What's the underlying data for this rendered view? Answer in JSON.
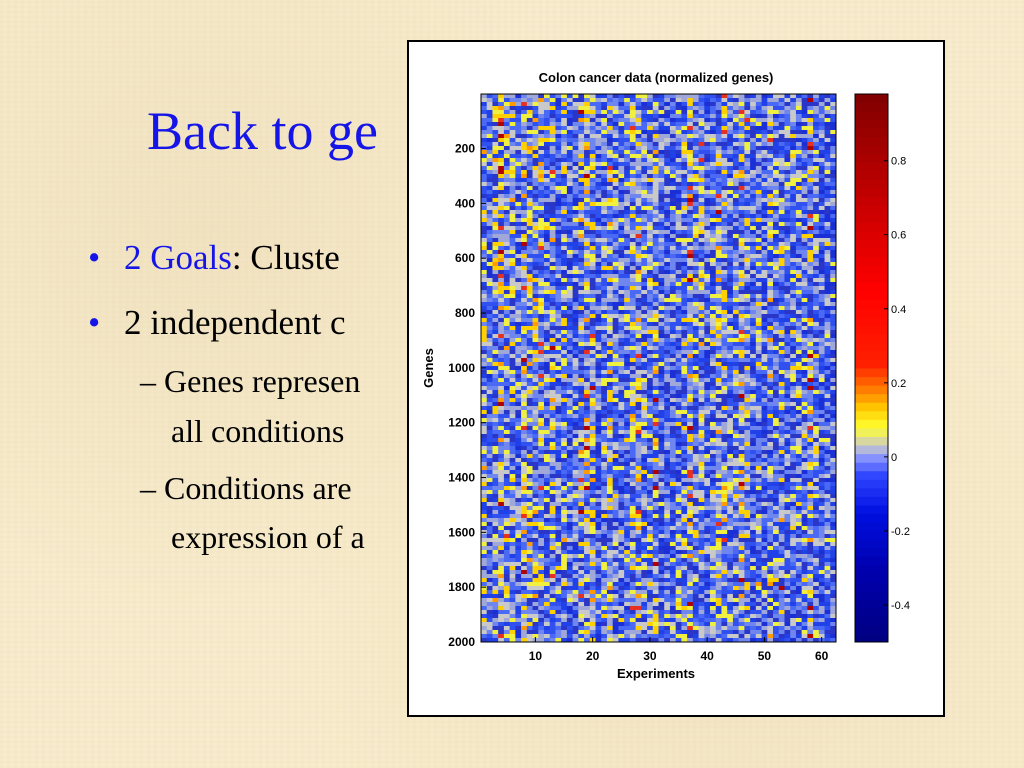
{
  "slide": {
    "title": "Back to ge",
    "bullets": [
      {
        "highlight": "2 Goals",
        "text": ": Cluste"
      },
      {
        "highlight": "",
        "text": "2 independent c"
      }
    ],
    "subbullets": [
      {
        "lines": [
          "– Genes represen",
          "all conditions"
        ]
      },
      {
        "lines": [
          "– Conditions are",
          "expression of a"
        ]
      }
    ]
  },
  "chart_data": {
    "type": "heatmap",
    "title": "Colon cancer data (normalized genes)",
    "xlabel": "Experiments",
    "ylabel": "Genes",
    "xlim": [
      0.5,
      62.5
    ],
    "ylim": [
      1,
      2000
    ],
    "x_ticks": [
      10,
      20,
      30,
      40,
      50,
      60
    ],
    "y_ticks": [
      200,
      400,
      600,
      800,
      1000,
      1200,
      1400,
      1600,
      1800,
      2000
    ],
    "n_experiments": 62,
    "n_genes": 2000,
    "colorbar": {
      "ticks": [
        0.8,
        0.6,
        0.4,
        0.2,
        0,
        -0.2,
        -0.4
      ],
      "range": [
        -0.5,
        0.98
      ],
      "colors": [
        "#000080",
        "#0000c0",
        "#0000ff",
        "#4060ff",
        "#8090ff",
        "#c8c8c8",
        "#ffff00",
        "#ffa000",
        "#ff4000",
        "#ff0000",
        "#c00000",
        "#800000"
      ]
    },
    "approximate": true
  }
}
